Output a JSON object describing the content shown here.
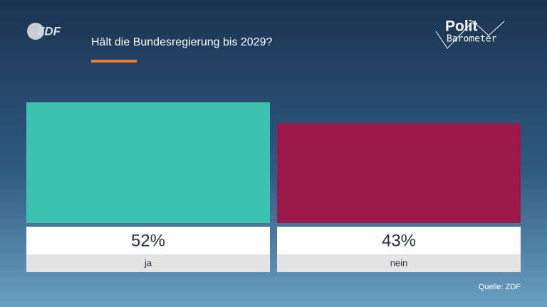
{
  "logo": "ZDF",
  "brand": {
    "line1": "Polit",
    "line2": "Barometer"
  },
  "chart_data": {
    "type": "bar",
    "title": "Hält die Bundesregierung bis 2029?",
    "categories": [
      "ja",
      "nein"
    ],
    "values": [
      52,
      43
    ],
    "value_labels": [
      "52%",
      "43%"
    ],
    "colors": [
      "#3dc2b1",
      "#9b1848"
    ],
    "source": "Quelle: ZDF"
  }
}
